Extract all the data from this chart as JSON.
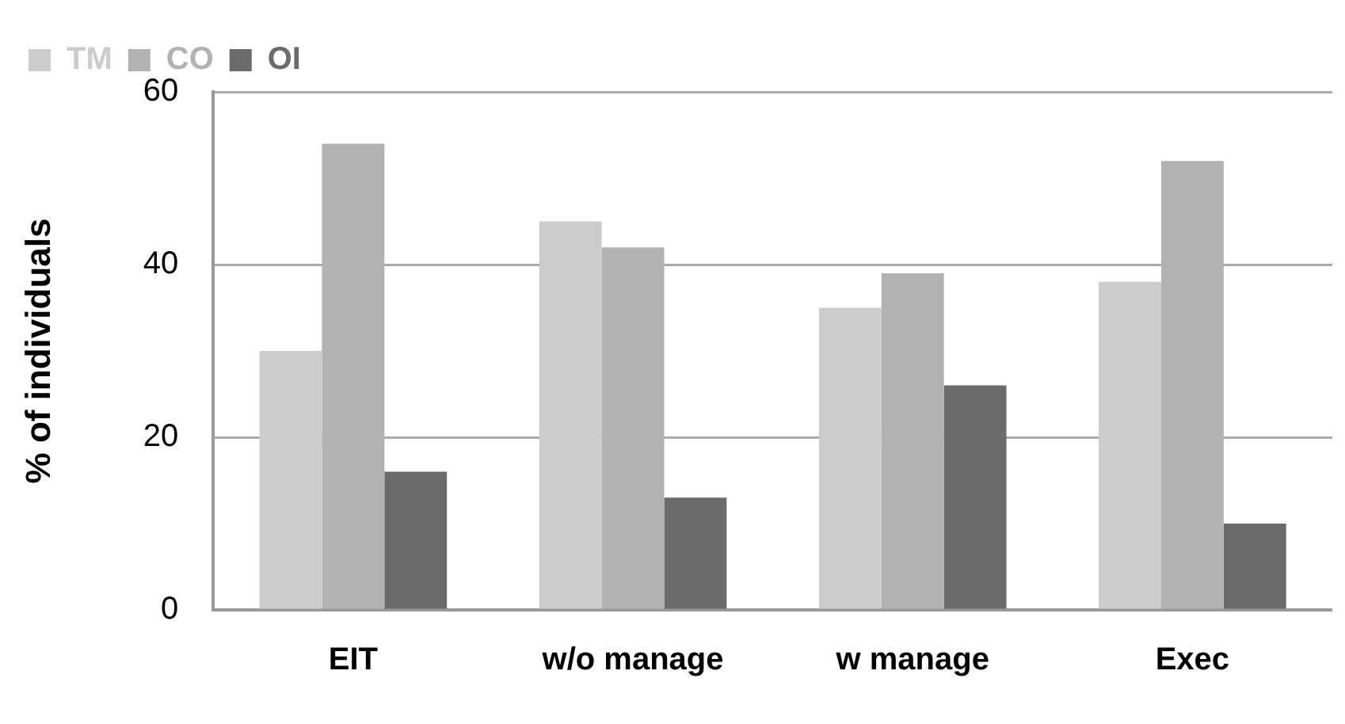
{
  "chart_data": {
    "type": "bar",
    "ylabel": "% of individuals",
    "categories": [
      "EIT",
      "w/o manage",
      "w manage",
      "Exec"
    ],
    "series": [
      {
        "name": "TM",
        "color": "#cccccc",
        "values": [
          30,
          45,
          35,
          38
        ]
      },
      {
        "name": "CO",
        "color": "#b2b2b2",
        "values": [
          54,
          42,
          39,
          52
        ]
      },
      {
        "name": "OI",
        "color": "#6b6b6b",
        "values": [
          16,
          13,
          26,
          10
        ]
      }
    ],
    "ylim": [
      0,
      60
    ],
    "yticks": [
      0,
      20,
      40,
      60
    ],
    "grid": "y",
    "legend": "top left"
  }
}
